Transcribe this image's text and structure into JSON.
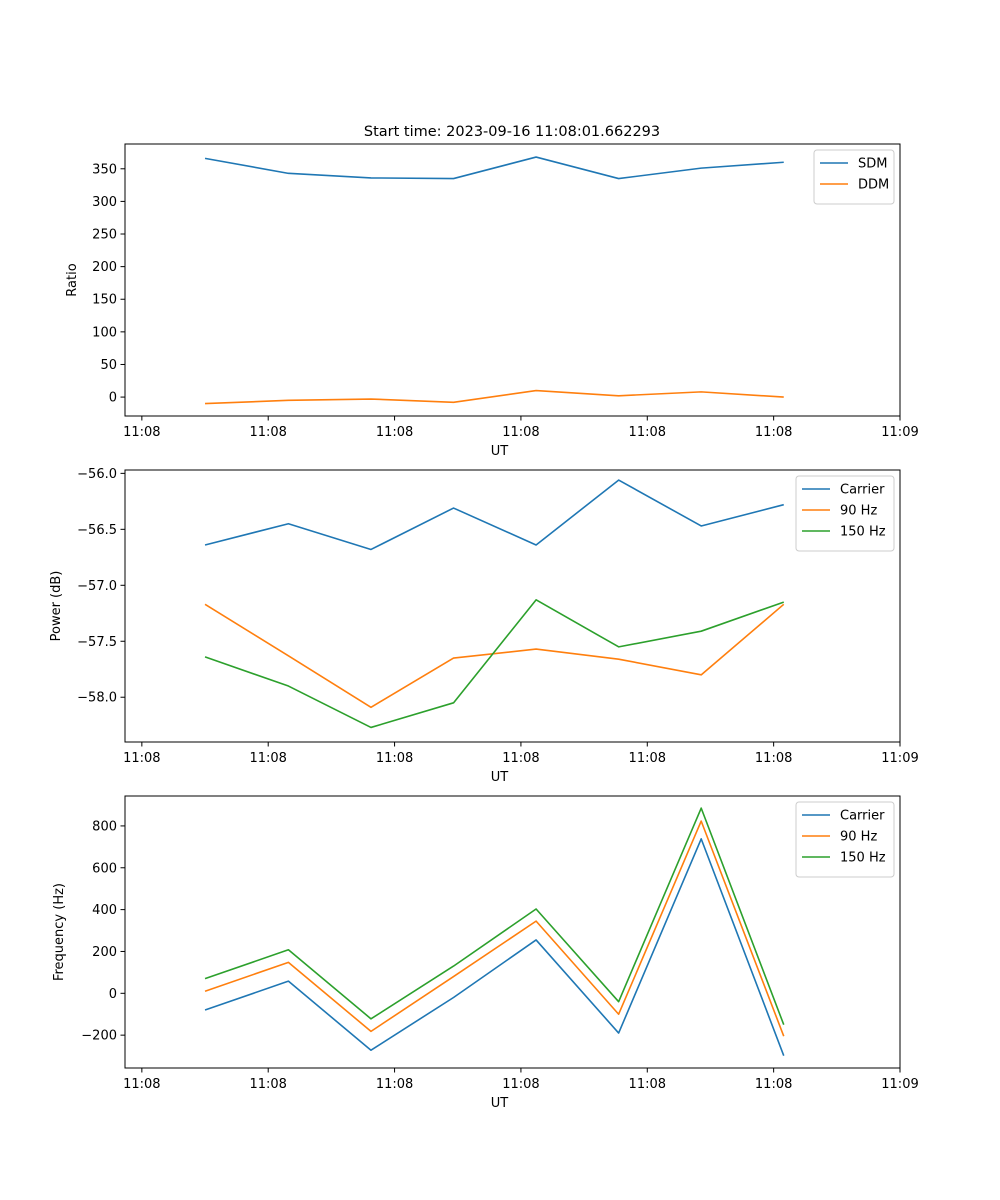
{
  "figure_title": "Start time: 2023-09-16 11:08:01.662293",
  "colors": {
    "blue": "#1f77b4",
    "orange": "#ff7f0e",
    "green": "#2ca02c"
  },
  "chart_data": [
    {
      "type": "line",
      "title": "Start time: 2023-09-16 11:08:01.662293",
      "xlabel": "UT",
      "ylabel": "Ratio",
      "xlim": [
        -0.2,
        9.0
      ],
      "ylim": [
        -29,
        388
      ],
      "xticks": [
        0,
        1.5,
        3,
        4.5,
        6,
        7.5,
        9
      ],
      "xtick_labels": [
        "11:08",
        "11:08",
        "11:08",
        "11:08",
        "11:08",
        "11:08",
        "11:09"
      ],
      "yticks": [
        0,
        50,
        100,
        150,
        200,
        250,
        300,
        350
      ],
      "ytick_labels": [
        "0",
        "50",
        "100",
        "150",
        "200",
        "250",
        "300",
        "350"
      ],
      "legend": "top-right",
      "x": [
        0.75,
        1.74,
        2.72,
        3.7,
        4.68,
        5.66,
        6.64,
        7.62
      ],
      "series": [
        {
          "name": "SDM",
          "color": "#1f77b4",
          "values": [
            366,
            343,
            336,
            335,
            368,
            335,
            351,
            360
          ]
        },
        {
          "name": "DDM",
          "color": "#ff7f0e",
          "values": [
            -10,
            -5,
            -3,
            -8,
            10,
            2,
            8,
            0
          ]
        }
      ]
    },
    {
      "type": "line",
      "xlabel": "UT",
      "ylabel": "Power (dB)",
      "xlim": [
        -0.2,
        9.0
      ],
      "ylim": [
        -58.4,
        -55.97
      ],
      "xticks": [
        0,
        1.5,
        3,
        4.5,
        6,
        7.5,
        9
      ],
      "xtick_labels": [
        "11:08",
        "11:08",
        "11:08",
        "11:08",
        "11:08",
        "11:08",
        "11:09"
      ],
      "yticks": [
        -58.0,
        -57.5,
        -57.0,
        -56.5,
        -56.0
      ],
      "ytick_labels": [
        "−58.0",
        "−57.5",
        "−57.0",
        "−56.5",
        "−56.0"
      ],
      "legend": "top-right",
      "x": [
        0.75,
        1.74,
        2.72,
        3.7,
        4.68,
        5.66,
        6.64,
        7.62
      ],
      "series": [
        {
          "name": "Carrier",
          "color": "#1f77b4",
          "values": [
            -56.64,
            -56.45,
            -56.68,
            -56.31,
            -56.64,
            -56.06,
            -56.47,
            -56.28
          ]
        },
        {
          "name": "90 Hz",
          "color": "#ff7f0e",
          "values": [
            -57.17,
            -57.63,
            -58.09,
            -57.65,
            -57.57,
            -57.66,
            -57.8,
            -57.17
          ]
        },
        {
          "name": "150 Hz",
          "color": "#2ca02c",
          "values": [
            -57.64,
            -57.9,
            -58.27,
            -58.05,
            -57.13,
            -57.55,
            -57.41,
            -57.15
          ]
        }
      ]
    },
    {
      "type": "line",
      "xlabel": "UT",
      "ylabel": "Frequency (Hz)",
      "xlim": [
        -0.2,
        9.0
      ],
      "ylim": [
        -357,
        943
      ],
      "xticks": [
        0,
        1.5,
        3,
        4.5,
        6,
        7.5,
        9
      ],
      "xtick_labels": [
        "11:08",
        "11:08",
        "11:08",
        "11:08",
        "11:08",
        "11:08",
        "11:09"
      ],
      "yticks": [
        -200,
        0,
        200,
        400,
        600,
        800
      ],
      "ytick_labels": [
        "−200",
        "0",
        "200",
        "400",
        "600",
        "800"
      ],
      "legend": "top-right",
      "x": [
        0.75,
        1.74,
        2.72,
        3.7,
        4.68,
        5.66,
        6.64,
        7.62
      ],
      "series": [
        {
          "name": "Carrier",
          "color": "#1f77b4",
          "values": [
            -80,
            58,
            -272,
            -20,
            255,
            -190,
            738,
            -298
          ]
        },
        {
          "name": "90 Hz",
          "color": "#ff7f0e",
          "values": [
            10,
            148,
            -182,
            80,
            345,
            -100,
            823,
            -205
          ]
        },
        {
          "name": "150 Hz",
          "color": "#2ca02c",
          "values": [
            70,
            208,
            -122,
            130,
            403,
            -40,
            885,
            -150
          ]
        }
      ]
    }
  ]
}
